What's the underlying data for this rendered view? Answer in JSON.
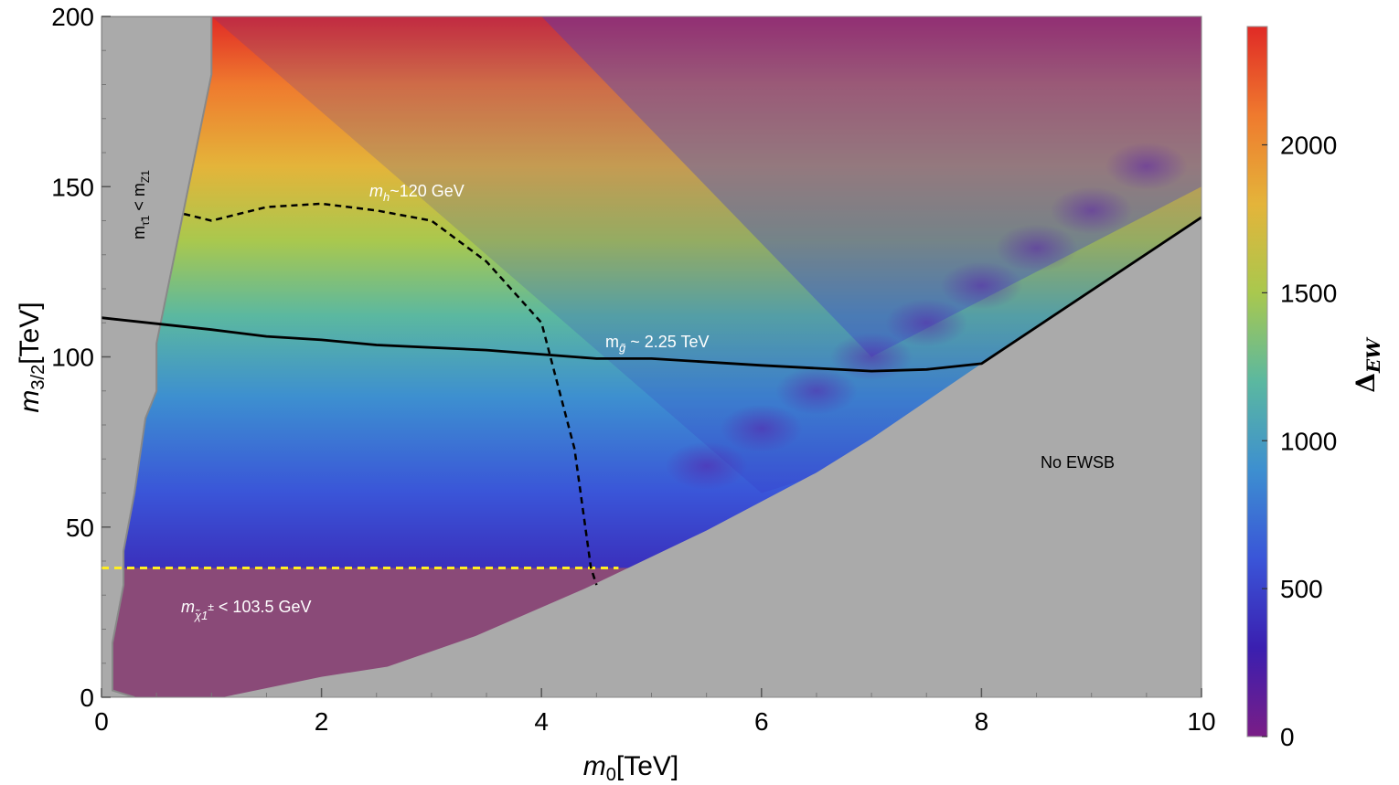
{
  "chart_data": {
    "type": "heatmap",
    "title": "",
    "xlabel": "m0[TeV]",
    "ylabel": "m3/2[TeV]",
    "xlim": [
      0,
      10
    ],
    "ylim": [
      0,
      200
    ],
    "x_ticks": [
      0,
      2,
      4,
      6,
      8,
      10
    ],
    "y_ticks": [
      0,
      50,
      100,
      150,
      200
    ],
    "colorbar": {
      "label": "ΔEW",
      "range": [
        0,
        2400
      ],
      "ticks": [
        0,
        500,
        1000,
        1500,
        2000
      ],
      "colors": [
        "#7a1d86",
        "#3a1fb0",
        "#3a55d8",
        "#3d8fd0",
        "#5bb8a0",
        "#a9c84e",
        "#e4b43a",
        "#ef7a2e",
        "#e02a26"
      ]
    },
    "regions": [
      {
        "name": "stau-lsp",
        "label_main": "m",
        "label_sub": "τ̃1",
        "label_mid": " < m",
        "label_sub2": "Z1",
        "boundary": [
          [
            0,
            200
          ],
          [
            1.0,
            200
          ],
          [
            1.0,
            183
          ],
          [
            0.5,
            104
          ],
          [
            0.5,
            90
          ],
          [
            0.4,
            82
          ],
          [
            0.3,
            60
          ],
          [
            0.2,
            43
          ],
          [
            0.2,
            33
          ],
          [
            0.1,
            16
          ],
          [
            0.1,
            2
          ],
          [
            0.3,
            0
          ],
          [
            0,
            0
          ]
        ]
      },
      {
        "name": "no-ewsb",
        "label": "No EWSB",
        "boundary": [
          [
            1.1,
            0
          ],
          [
            2.0,
            6
          ],
          [
            2.6,
            9
          ],
          [
            3.4,
            18
          ],
          [
            4.4,
            32
          ],
          [
            5.5,
            49
          ],
          [
            6.5,
            66
          ],
          [
            7.0,
            76
          ],
          [
            8.0,
            98
          ],
          [
            10,
            141
          ],
          [
            10,
            0
          ]
        ]
      },
      {
        "name": "chargino-lep",
        "label_main": "m",
        "label_sub": "χ̃1",
        "label_sup": "±",
        "label_tail": " < 103.5 GeV",
        "ymax": 38,
        "boundary_line": [
          [
            0,
            38
          ],
          [
            4.7,
            38
          ]
        ]
      }
    ],
    "contours": [
      {
        "name": "higgs-mass",
        "label_main": "m",
        "label_sub": "h",
        "label_tail": "~120 GeV",
        "style": "dashed",
        "points": [
          [
            0.75,
            142
          ],
          [
            1.0,
            140
          ],
          [
            1.5,
            144
          ],
          [
            2.0,
            145
          ],
          [
            2.5,
            143
          ],
          [
            3.0,
            140
          ],
          [
            3.5,
            128
          ],
          [
            4.0,
            110
          ],
          [
            4.3,
            73
          ],
          [
            4.45,
            38
          ],
          [
            4.5,
            33
          ]
        ]
      },
      {
        "name": "gluino-mass",
        "label_main": "m",
        "label_sub": "g̃",
        "label_tail": " ~ 2.25 TeV",
        "style": "solid",
        "points": [
          [
            0,
            111.5
          ],
          [
            1.0,
            108
          ],
          [
            1.5,
            106
          ],
          [
            2.0,
            105
          ],
          [
            2.5,
            103.5
          ],
          [
            3.5,
            102
          ],
          [
            4.5,
            99.5
          ],
          [
            5.0,
            99.5
          ],
          [
            6.0,
            97.5
          ],
          [
            7.0,
            95.8
          ],
          [
            7.5,
            96.3
          ],
          [
            8.0,
            98
          ],
          [
            10,
            141
          ]
        ]
      }
    ],
    "valleys": [
      [
        9.5,
        156
      ],
      [
        9.0,
        143
      ],
      [
        8.5,
        132
      ],
      [
        8.0,
        121
      ],
      [
        7.5,
        110
      ],
      [
        7.0,
        100
      ],
      [
        6.5,
        90
      ],
      [
        6.0,
        79
      ],
      [
        5.5,
        68
      ]
    ]
  }
}
